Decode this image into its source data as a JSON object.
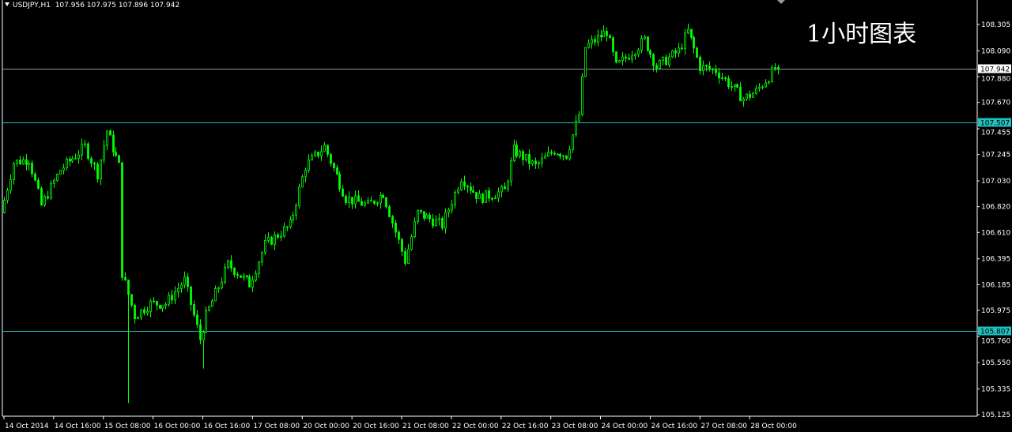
{
  "header": {
    "symbol": "USDJPY,H1",
    "open": "107.956",
    "high": "107.975",
    "low": "107.896",
    "close": "107.942"
  },
  "overlay_title": "1小时图表",
  "colors": {
    "background": "#000000",
    "candle": "#00ff00",
    "axis": "#ffffff",
    "hline": "#20c0c0",
    "bid_line": "#8a9aa0",
    "grid_text": "#ffffff"
  },
  "chart_data": {
    "type": "candlestick",
    "symbol": "USDJPY",
    "timeframe": "H1",
    "ylim": [
      105.125,
      108.305
    ],
    "y_ticks": [
      "108.305",
      "108.090",
      "107.880",
      "107.670",
      "107.455",
      "107.245",
      "107.030",
      "106.820",
      "106.610",
      "106.395",
      "106.185",
      "105.975",
      "105.760",
      "105.550",
      "105.335",
      "105.125"
    ],
    "x_ticks": [
      "14 Oct 2014",
      "14 Oct 16:00",
      "15 Oct 08:00",
      "16 Oct 00:00",
      "16 Oct 16:00",
      "17 Oct 08:00",
      "20 Oct 00:00",
      "20 Oct 16:00",
      "21 Oct 08:00",
      "22 Oct 00:00",
      "22 Oct 16:00",
      "23 Oct 08:00",
      "24 Oct 00:00",
      "24 Oct 16:00",
      "27 Oct 08:00",
      "28 Oct 00:00"
    ],
    "bars_per_x_tick": 16,
    "price_path_approx": [
      [
        0,
        106.77
      ],
      [
        4,
        107.18
      ],
      [
        9,
        107.21
      ],
      [
        13,
        106.83
      ],
      [
        19,
        107.12
      ],
      [
        27,
        107.31
      ],
      [
        31,
        107.09
      ],
      [
        34,
        107.44
      ],
      [
        38,
        107.15
      ],
      [
        39,
        106.28
      ],
      [
        43,
        105.93
      ],
      [
        48,
        106.03
      ],
      [
        53,
        106.03
      ],
      [
        59,
        106.22
      ],
      [
        64,
        105.74
      ],
      [
        66,
        105.93
      ],
      [
        73,
        106.35
      ],
      [
        80,
        106.19
      ],
      [
        85,
        106.51
      ],
      [
        93,
        106.67
      ],
      [
        98,
        107.15
      ],
      [
        104,
        107.31
      ],
      [
        111,
        106.89
      ],
      [
        118,
        106.83
      ],
      [
        123,
        106.93
      ],
      [
        130,
        106.38
      ],
      [
        134,
        106.77
      ],
      [
        142,
        106.67
      ],
      [
        148,
        107.06
      ],
      [
        154,
        106.89
      ],
      [
        162,
        106.95
      ],
      [
        165,
        107.28
      ],
      [
        172,
        107.15
      ],
      [
        178,
        107.28
      ],
      [
        182,
        107.24
      ],
      [
        186,
        107.57
      ],
      [
        188,
        108.12
      ],
      [
        195,
        108.25
      ],
      [
        198,
        107.96
      ],
      [
        207,
        108.18
      ],
      [
        211,
        107.96
      ],
      [
        218,
        108.09
      ],
      [
        221,
        108.25
      ],
      [
        225,
        107.96
      ],
      [
        230,
        107.93
      ],
      [
        239,
        107.7
      ],
      [
        243,
        107.76
      ],
      [
        249,
        107.942
      ]
    ],
    "notable_lows": [
      [
        40,
        105.22
      ],
      [
        64,
        105.5
      ]
    ],
    "last_candle": {
      "open": 107.956,
      "high": 107.975,
      "low": 107.896,
      "close": 107.942
    },
    "horizontal_lines": [
      {
        "price": 107.942,
        "label": "107.942",
        "kind": "bid"
      },
      {
        "price": 107.507,
        "label": "107.507",
        "kind": "level"
      },
      {
        "price": 105.807,
        "label": "105.807",
        "kind": "level"
      }
    ]
  }
}
